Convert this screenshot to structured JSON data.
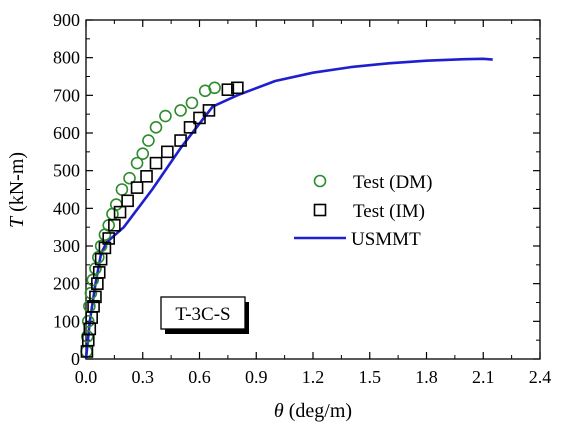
{
  "chart_data": {
    "type": "scatter",
    "xlabel_symbol": "θ",
    "xlabel_unit": " (deg/m)",
    "ylabel_symbol": "T",
    "ylabel_unit": " (kN-m)",
    "xlim": [
      0.0,
      2.4
    ],
    "ylim": [
      0,
      900
    ],
    "x_ticks": [
      "0.0",
      "0.3",
      "0.6",
      "0.9",
      "1.2",
      "1.5",
      "1.8",
      "2.1",
      "2.4"
    ],
    "y_ticks": [
      "0",
      "100",
      "200",
      "300",
      "400",
      "500",
      "600",
      "700",
      "800",
      "900"
    ],
    "grid": false,
    "legend_position": "center-right",
    "annotation": "T-3C-S",
    "series": [
      {
        "name": "Test (DM)",
        "marker": "circle",
        "color": "#2e8b2e",
        "x": [
          0.003,
          0.007,
          0.012,
          0.018,
          0.026,
          0.036,
          0.05,
          0.065,
          0.08,
          0.1,
          0.12,
          0.14,
          0.16,
          0.19,
          0.23,
          0.27,
          0.3,
          0.33,
          0.37,
          0.42,
          0.5,
          0.56,
          0.63,
          0.68
        ],
        "y": [
          20,
          60,
          100,
          140,
          175,
          210,
          240,
          270,
          300,
          330,
          355,
          385,
          410,
          450,
          480,
          520,
          545,
          580,
          615,
          645,
          660,
          680,
          712,
          720
        ]
      },
      {
        "name": "Test (IM)",
        "marker": "square",
        "color": "#000000",
        "x": [
          0.005,
          0.012,
          0.02,
          0.03,
          0.04,
          0.05,
          0.06,
          0.07,
          0.08,
          0.1,
          0.12,
          0.15,
          0.18,
          0.22,
          0.27,
          0.32,
          0.37,
          0.43,
          0.5,
          0.55,
          0.6,
          0.65,
          0.75,
          0.8
        ],
        "y": [
          20,
          50,
          80,
          110,
          140,
          165,
          200,
          230,
          265,
          295,
          320,
          355,
          390,
          420,
          455,
          485,
          520,
          550,
          580,
          615,
          640,
          660,
          715,
          720
        ]
      },
      {
        "name": "USMMT",
        "type": "line",
        "color": "#1f1fcf",
        "x": [
          0.0,
          0.02,
          0.05,
          0.08,
          0.11,
          0.2,
          0.35,
          0.5,
          0.6,
          0.67,
          0.8,
          1.0,
          1.2,
          1.4,
          1.6,
          1.8,
          2.0,
          2.1,
          2.15
        ],
        "y": [
          0,
          100,
          200,
          280,
          310,
          350,
          450,
          560,
          625,
          670,
          700,
          738,
          760,
          775,
          785,
          792,
          796,
          797,
          795
        ]
      }
    ]
  }
}
